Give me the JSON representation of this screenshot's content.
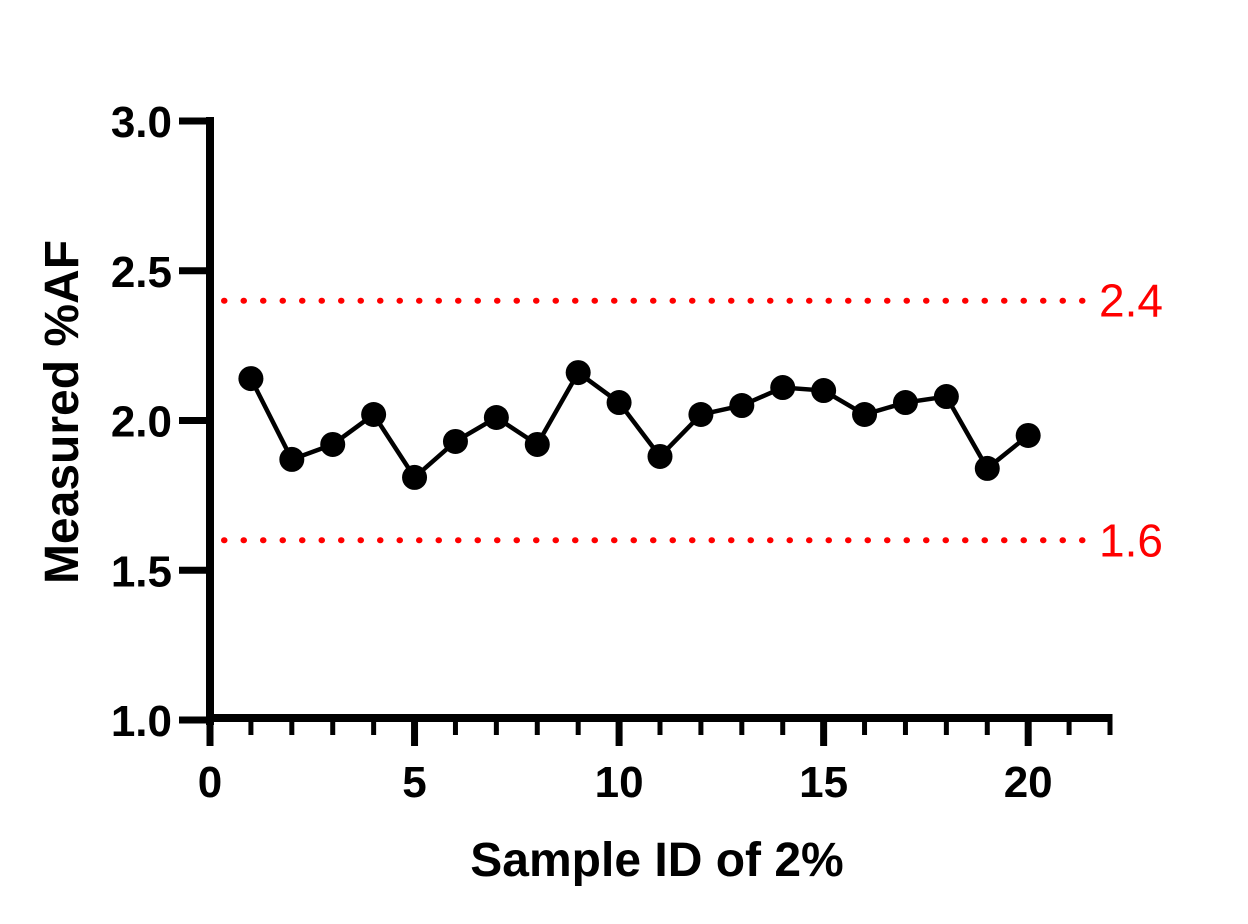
{
  "chart_data": {
    "type": "line",
    "title": "",
    "xlabel": "Sample ID of 2%",
    "ylabel": "Measured %AF",
    "x": [
      1,
      2,
      3,
      4,
      5,
      6,
      7,
      8,
      9,
      10,
      11,
      12,
      13,
      14,
      15,
      16,
      17,
      18,
      19,
      20
    ],
    "series": [
      {
        "name": "Measured %AF",
        "values": [
          2.14,
          1.87,
          1.92,
          2.02,
          1.81,
          1.93,
          2.01,
          1.92,
          2.16,
          2.06,
          1.88,
          2.02,
          2.05,
          2.11,
          2.1,
          2.02,
          2.06,
          2.08,
          1.84,
          1.95
        ],
        "marker": "circle",
        "marker_color": "#000000",
        "line_color": "#000000"
      }
    ],
    "xlim": [
      0,
      22
    ],
    "ylim": [
      1.0,
      3.0
    ],
    "x_axis": {
      "major_ticks": [
        0,
        5,
        10,
        15,
        20
      ],
      "major_tick_labels": [
        "0",
        "5",
        "10",
        "15",
        "20"
      ],
      "minor_tick_step": 1,
      "minor_tick_min": 1,
      "minor_tick_max": 22
    },
    "y_axis": {
      "ticks": [
        3.0,
        2.5,
        2.0,
        1.5,
        1.0
      ],
      "tick_labels": [
        "3.0",
        "2.5",
        "2.0",
        "1.5",
        "1.0"
      ]
    },
    "reference_lines": [
      {
        "value": 2.4,
        "label": "2.4",
        "color": "#FF0000",
        "style": "dotted"
      },
      {
        "value": 1.6,
        "label": "1.6",
        "color": "#FF0000",
        "style": "dotted"
      }
    ],
    "grid": false,
    "legend": "none",
    "colors": {
      "axis": "#000000",
      "background": "#FFFFFF",
      "reference": "#FF0000"
    }
  }
}
